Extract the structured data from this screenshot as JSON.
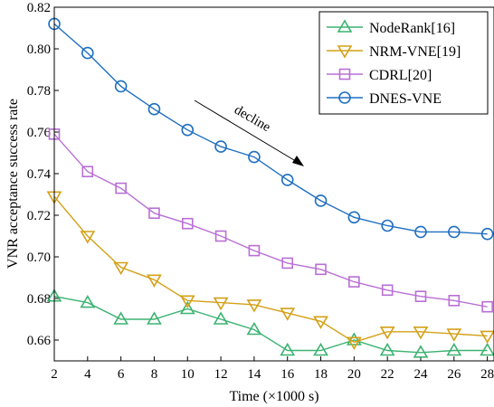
{
  "chart_data": {
    "type": "line",
    "xlabel": "Time (×1000 s)",
    "ylabel": "VNR acceptance success rate",
    "x": [
      2,
      4,
      6,
      8,
      10,
      12,
      14,
      16,
      18,
      20,
      22,
      24,
      26,
      28
    ],
    "xticks": [
      2,
      4,
      6,
      8,
      10,
      12,
      14,
      16,
      18,
      20,
      22,
      24,
      26,
      28
    ],
    "xlim": [
      2,
      28.4
    ],
    "ylim": [
      0.65,
      0.82
    ],
    "yticks": [
      "0.66",
      "0.68",
      "0.70",
      "0.72",
      "0.74",
      "0.76",
      "0.78",
      "0.80",
      "0.82"
    ],
    "series": [
      {
        "name": "NodeRank[16]",
        "color": "#3cb371",
        "marker": "triangle-up",
        "values": [
          0.681,
          0.678,
          0.67,
          0.67,
          0.675,
          0.67,
          0.665,
          0.655,
          0.655,
          0.66,
          0.655,
          0.654,
          0.655,
          0.655
        ]
      },
      {
        "name": "NRM-VNE[19]",
        "color": "#d4a017",
        "marker": "triangle-down",
        "values": [
          0.729,
          0.71,
          0.695,
          0.689,
          0.679,
          0.678,
          0.677,
          0.673,
          0.669,
          0.659,
          0.664,
          0.664,
          0.663,
          0.662
        ]
      },
      {
        "name": "CDRL[20]",
        "color": "#b96fd6",
        "marker": "square",
        "values": [
          0.759,
          0.741,
          0.733,
          0.721,
          0.716,
          0.71,
          0.703,
          0.697,
          0.694,
          0.688,
          0.684,
          0.681,
          0.679,
          0.676
        ]
      },
      {
        "name": "DNES-VNE",
        "color": "#1f6fc0",
        "marker": "circle",
        "values": [
          0.812,
          0.798,
          0.782,
          0.771,
          0.761,
          0.753,
          0.748,
          0.737,
          0.727,
          0.719,
          0.715,
          0.712,
          0.712,
          0.711
        ]
      }
    ],
    "annotation": {
      "text": "decline"
    },
    "legend": "top-right",
    "grid": false
  }
}
